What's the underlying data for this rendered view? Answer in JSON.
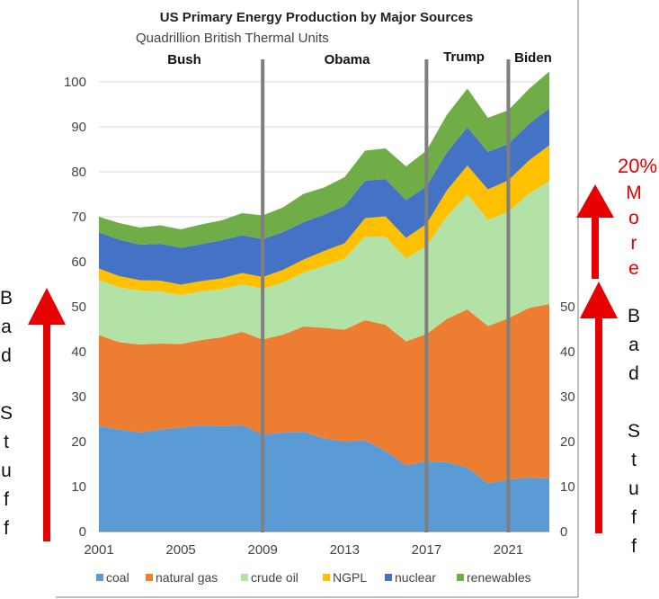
{
  "chart_data": {
    "type": "area",
    "title": "US Primary Energy Production by Major Sources",
    "subtitle": "Quadrillion British Thermal Units",
    "x": [
      2001,
      2002,
      2003,
      2004,
      2005,
      2006,
      2007,
      2008,
      2009,
      2010,
      2011,
      2012,
      2013,
      2014,
      2015,
      2016,
      2017,
      2018,
      2019,
      2020,
      2021,
      2022,
      2023
    ],
    "xticks": [
      "2001",
      "2005",
      "2009",
      "2013",
      "2017",
      "2021"
    ],
    "xtick_values": [
      2001,
      2005,
      2009,
      2013,
      2017,
      2021
    ],
    "xlim": [
      2001,
      2023
    ],
    "ylim": [
      0,
      105
    ],
    "left_yticks": [
      "0",
      "10",
      "20",
      "30",
      "40",
      "50",
      "60",
      "70",
      "80",
      "90",
      "100"
    ],
    "left_ytick_values": [
      0,
      10,
      20,
      30,
      40,
      50,
      60,
      70,
      80,
      90,
      100
    ],
    "right_yticks": [
      "0",
      "10",
      "20",
      "30",
      "40",
      "50"
    ],
    "right_ytick_values": [
      0,
      10,
      20,
      30,
      40,
      50
    ],
    "series": [
      {
        "name": "coal",
        "color": "#5b9bd5",
        "values": [
          23.5,
          22.7,
          22.0,
          22.7,
          23.1,
          23.6,
          23.4,
          23.7,
          21.6,
          22.0,
          22.2,
          20.7,
          20.0,
          20.3,
          17.9,
          14.7,
          15.6,
          15.4,
          14.2,
          10.7,
          11.6,
          12.0,
          11.8
        ]
      },
      {
        "name": "natural gas",
        "color": "#ed7d31",
        "values": [
          20.2,
          19.4,
          19.6,
          19.1,
          18.6,
          19.0,
          19.8,
          20.7,
          21.1,
          21.8,
          23.4,
          24.6,
          24.9,
          26.7,
          28.1,
          27.6,
          28.3,
          31.9,
          35.2,
          35.0,
          35.8,
          37.7,
          38.8
        ]
      },
      {
        "name": "crude oil",
        "color": "#b3e2a6",
        "values": [
          12.3,
          12.2,
          12.0,
          11.6,
          10.9,
          10.8,
          10.7,
          10.6,
          11.3,
          11.6,
          12.0,
          13.8,
          15.8,
          18.6,
          19.6,
          18.4,
          19.6,
          22.8,
          25.6,
          23.6,
          23.7,
          25.4,
          27.3
        ]
      },
      {
        "name": "NGPL",
        "color": "#ffc000",
        "values": [
          2.5,
          2.5,
          2.3,
          2.4,
          2.3,
          2.3,
          2.4,
          2.5,
          2.6,
          2.8,
          2.9,
          3.3,
          3.4,
          4.1,
          4.5,
          4.6,
          4.9,
          5.8,
          6.4,
          6.8,
          7.0,
          7.4,
          8.0
        ]
      },
      {
        "name": "nuclear",
        "color": "#4472c4",
        "values": [
          8.0,
          8.1,
          7.9,
          8.2,
          8.2,
          8.2,
          8.5,
          8.4,
          8.4,
          8.4,
          8.3,
          8.1,
          8.3,
          8.3,
          8.3,
          8.4,
          8.4,
          8.4,
          8.5,
          8.3,
          8.1,
          8.1,
          8.2
        ]
      },
      {
        "name": "renewables",
        "color": "#70ad47",
        "values": [
          3.5,
          3.7,
          3.8,
          4.1,
          4.1,
          4.4,
          4.4,
          4.9,
          5.3,
          5.5,
          6.3,
          6.0,
          6.4,
          6.7,
          6.8,
          7.5,
          7.9,
          8.4,
          8.6,
          7.6,
          7.5,
          7.8,
          8.2
        ]
      }
    ],
    "legend": "bottom",
    "grid": "horizontal"
  },
  "president_labels": [
    "Bush",
    "Obama",
    "Trump",
    "Biden"
  ],
  "dividers": [
    2009,
    2017,
    2021
  ],
  "annotations": {
    "left_vertical": [
      "B",
      "a",
      "d",
      "",
      "S",
      "t",
      "u",
      "f",
      "f"
    ],
    "right_pct": "20%",
    "right_more": [
      "M",
      "o",
      "r",
      "e"
    ],
    "right_vertical": [
      "B",
      "a",
      "d",
      "",
      "S",
      "t",
      "u",
      "f",
      "f"
    ]
  },
  "colors": {
    "arrow": "#e60000",
    "divider": "#7f7f7f",
    "grid": "#d9d9d9"
  }
}
